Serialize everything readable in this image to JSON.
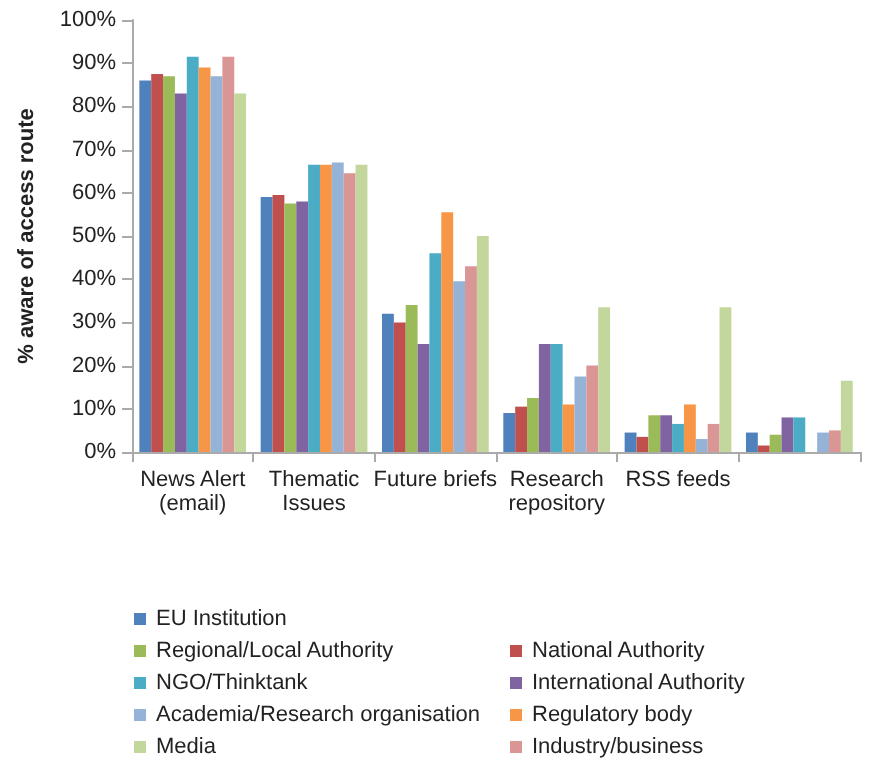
{
  "chart_data": {
    "type": "bar",
    "ylabel": "% aware of access route",
    "categories": [
      "News Alert\n(email)",
      "Thematic\nIssues",
      "Future briefs",
      "Research\nrepository",
      "RSS feeds",
      null
    ],
    "series": [
      {
        "name": "EU Institution",
        "color": "#4f81bd",
        "values": [
          86,
          59,
          32,
          9,
          4.5,
          4.5
        ]
      },
      {
        "name": "National Authority",
        "color": "#c0504d",
        "values": [
          87.5,
          59.5,
          30,
          10.5,
          3.5,
          1.5
        ]
      },
      {
        "name": "Regional/Local Authority",
        "color": "#9bbb59",
        "values": [
          87,
          57.5,
          34,
          12.5,
          8.5,
          4
        ]
      },
      {
        "name": "International Authority",
        "color": "#8064a2",
        "values": [
          83,
          58,
          25,
          25,
          8.5,
          8
        ]
      },
      {
        "name": "NGO/Thinktank",
        "color": "#4bacc6",
        "values": [
          91.5,
          66.5,
          46,
          25,
          6.5,
          8
        ]
      },
      {
        "name": "Regulatory body",
        "color": "#f79646",
        "values": [
          89,
          66.5,
          55.5,
          11,
          11,
          0
        ]
      },
      {
        "name": "Academia/Research organisation",
        "color": "#95b3d7",
        "values": [
          87,
          67,
          39.5,
          17.5,
          3,
          4.5
        ]
      },
      {
        "name": "Industry/business",
        "color": "#d99694",
        "values": [
          91.5,
          64.5,
          43,
          20,
          6.5,
          5
        ]
      },
      {
        "name": "Media",
        "color": "#c3d69b",
        "values": [
          83,
          66.5,
          50,
          33.5,
          33.5,
          16.5
        ]
      }
    ],
    "ylim": [
      0,
      100
    ],
    "yticks": [
      {
        "value": 0,
        "label": "0%"
      },
      {
        "value": 10,
        "label": "10%"
      },
      {
        "value": 20,
        "label": "20%"
      },
      {
        "value": 30,
        "label": "30%"
      },
      {
        "value": 40,
        "label": "40%"
      },
      {
        "value": 50,
        "label": "50%"
      },
      {
        "value": 60,
        "label": "60%"
      },
      {
        "value": 70,
        "label": "70%"
      },
      {
        "value": 80,
        "label": "80%"
      },
      {
        "value": 90,
        "label": "90%"
      },
      {
        "value": 100,
        "label": "100%"
      }
    ],
    "grid": false,
    "legend": "bottom"
  }
}
